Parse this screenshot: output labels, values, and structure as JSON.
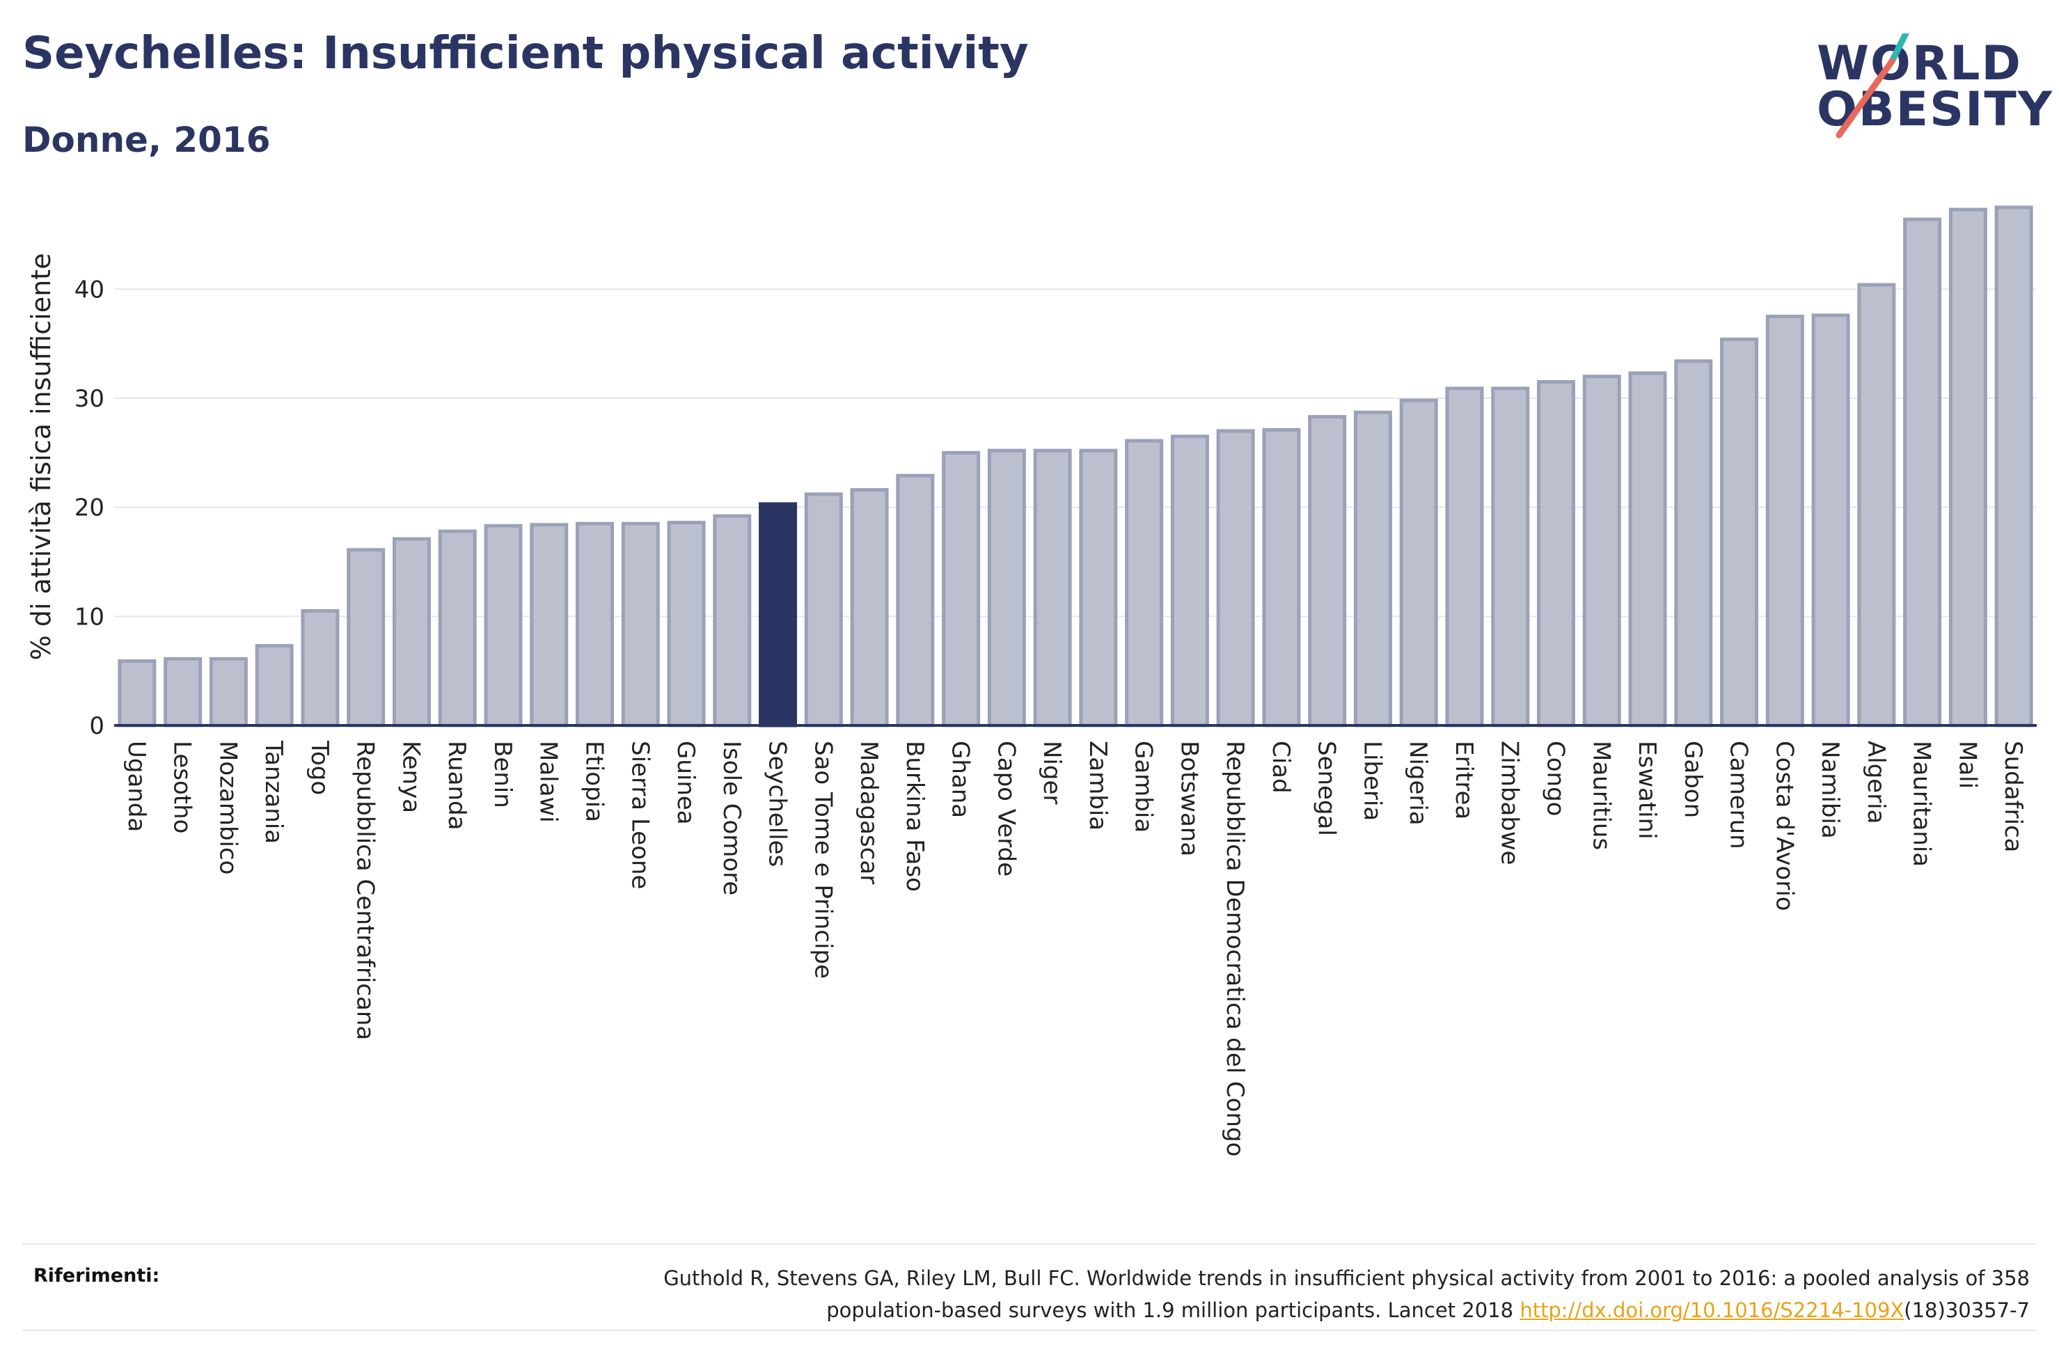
{
  "header": {
    "title": "Seychelles: Insufficient physical activity",
    "subtitle": "Donne, 2016"
  },
  "logo": {
    "line1": "WORLD",
    "line2": "OBESITY"
  },
  "references": {
    "label": "Riferimenti:",
    "text_line1": "Guthold R, Stevens GA, Riley LM, Bull FC. Worldwide trends in insufficient physical activity from 2001 to 2016: a pooled analysis of 358",
    "text_line2_prefix": "population-based surveys with 1.9 million participants. Lancet 2018 ",
    "link": "http://dx.doi.org/10.1016/S2214-109X",
    "text_line2_suffix": "(18)30357-7"
  },
  "colors": {
    "bar_fill": "#bcc0ce",
    "bar_stroke": "#9ba1b8",
    "highlight": "#2b3563",
    "title": "#2b3563",
    "grid": "#e6e6ea",
    "link": "#e8a317",
    "logo_teal": "#2fb8b0",
    "logo_coral": "#e8685a"
  },
  "chart_data": {
    "type": "bar",
    "ylabel": "% di attività fisica insufficiente",
    "xlabel": "",
    "ylim": [
      0,
      48
    ],
    "yticks": [
      0,
      10,
      20,
      30,
      40
    ],
    "grid": true,
    "highlight": "Seychelles",
    "categories": [
      "Uganda",
      "Lesotho",
      "Mozambico",
      "Tanzania",
      "Togo",
      "Repubblica Centrafricana",
      "Kenya",
      "Ruanda",
      "Benin",
      "Malawi",
      "Etiopia",
      "Sierra Leone",
      "Guinea",
      "Isole Comore",
      "Seychelles",
      "Sao Tome e Principe",
      "Madagascar",
      "Burkina Faso",
      "Ghana",
      "Capo Verde",
      "Niger",
      "Zambia",
      "Gambia",
      "Botswana",
      "Repubblica Democratica del Congo",
      "Ciad",
      "Senegal",
      "Liberia",
      "Nigeria",
      "Eritrea",
      "Zimbabwe",
      "Congo",
      "Mauritius",
      "Eswatini",
      "Gabon",
      "Camerun",
      "Costa d'Avorio",
      "Namibia",
      "Algeria",
      "Mauritania",
      "Mali",
      "Sudafrica"
    ],
    "values": [
      5.9,
      6.1,
      6.1,
      7.3,
      10.5,
      16.1,
      17.1,
      17.8,
      18.3,
      18.4,
      18.5,
      18.5,
      18.6,
      19.2,
      20.3,
      21.2,
      21.6,
      22.9,
      25.0,
      25.2,
      25.2,
      25.2,
      26.1,
      26.5,
      27.0,
      27.1,
      28.3,
      28.7,
      29.8,
      30.9,
      30.9,
      31.5,
      32.0,
      32.3,
      33.4,
      35.4,
      37.5,
      37.6,
      40.4,
      46.4,
      47.3,
      47.5
    ]
  }
}
